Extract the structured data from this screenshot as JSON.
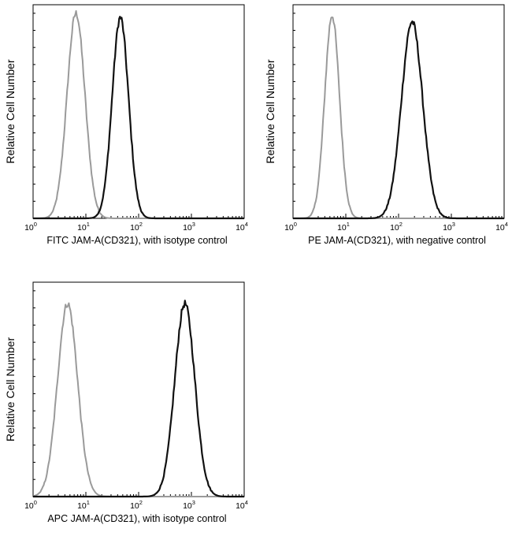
{
  "chart_data": [
    {
      "type": "line",
      "xlabel": "FITC  JAM-A(CD321),  with isotype control",
      "ylabel": "Relative Cell Number",
      "xscale": "log",
      "xlim": [
        1,
        10000
      ],
      "x_ticks": [
        {
          "base": "10",
          "exp": "0"
        },
        {
          "base": "10",
          "exp": "1"
        },
        {
          "base": "10",
          "exp": "2"
        },
        {
          "base": "10",
          "exp": "3"
        },
        {
          "base": "10",
          "exp": "4"
        }
      ],
      "grid": false,
      "series": [
        {
          "color": "#9a9a9a",
          "peak": 6.5,
          "log_width": 0.17,
          "peak_height": 0.96
        },
        {
          "color": "#111111",
          "peak": 45,
          "log_width": 0.155,
          "peak_height": 0.94
        }
      ]
    },
    {
      "type": "line",
      "xlabel": "PE  JAM-A(CD321),  with negative control",
      "ylabel": "Relative Cell Number",
      "xscale": "log",
      "xlim": [
        1,
        10000
      ],
      "x_ticks": [
        {
          "base": "10",
          "exp": "0"
        },
        {
          "base": "10",
          "exp": "1"
        },
        {
          "base": "10",
          "exp": "2"
        },
        {
          "base": "10",
          "exp": "3"
        },
        {
          "base": "10",
          "exp": "4"
        }
      ],
      "grid": false,
      "series": [
        {
          "color": "#9a9a9a",
          "peak": 5.5,
          "log_width": 0.14,
          "peak_height": 0.95
        },
        {
          "color": "#111111",
          "peak": 180,
          "log_width": 0.2,
          "peak_height": 0.92
        }
      ]
    },
    {
      "type": "line",
      "xlabel": "APC  JAM-A(CD321),  with isotype control",
      "ylabel": "Relative Cell Number",
      "xscale": "log",
      "xlim": [
        1,
        10000
      ],
      "x_ticks": [
        {
          "base": "10",
          "exp": "0"
        },
        {
          "base": "10",
          "exp": "1"
        },
        {
          "base": "10",
          "exp": "2"
        },
        {
          "base": "10",
          "exp": "3"
        },
        {
          "base": "10",
          "exp": "4"
        }
      ],
      "grid": false,
      "series": [
        {
          "color": "#9a9a9a",
          "peak": 4.5,
          "log_width": 0.19,
          "peak_height": 0.9
        },
        {
          "color": "#111111",
          "peak": 750,
          "log_width": 0.19,
          "peak_height": 0.9
        }
      ]
    }
  ]
}
